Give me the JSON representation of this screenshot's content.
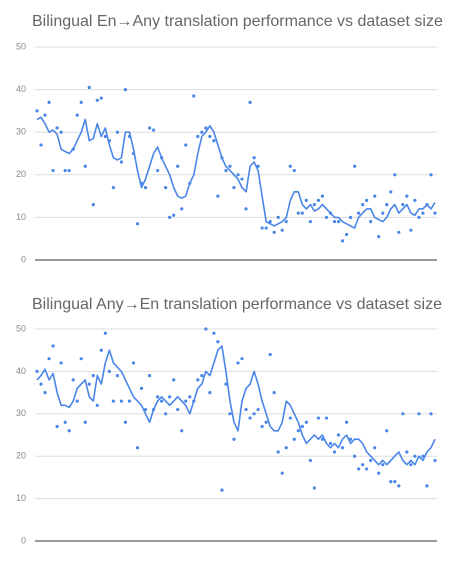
{
  "chart_data": [
    {
      "type": "line",
      "title": "Bilingual En→Any translation performance vs dataset size",
      "ylim": [
        0,
        50
      ],
      "yticks": [
        0,
        10,
        20,
        30,
        40,
        50
      ],
      "grid": true,
      "series": [
        {
          "type": "scatter",
          "color": "#4a86e8",
          "values": [
            35,
            27,
            34,
            37,
            21,
            31,
            30,
            21,
            21,
            26,
            34,
            37,
            22,
            40.5,
            13,
            37.5,
            38,
            29,
            28,
            17,
            30,
            23,
            40,
            29,
            25,
            8.5,
            18,
            17,
            31,
            30.5,
            21,
            24,
            17,
            10,
            10.5,
            22,
            12,
            27,
            18,
            38.5,
            29,
            30,
            31,
            29,
            28,
            15,
            24,
            21,
            22,
            17,
            20,
            19,
            12,
            37,
            24,
            22,
            7.5,
            7.5,
            9,
            6.5,
            10,
            7,
            9,
            22,
            21,
            11,
            11,
            14,
            9,
            13,
            14,
            15,
            10,
            11,
            9,
            9,
            4.5,
            6,
            10,
            22,
            11,
            13,
            14,
            9,
            15,
            5.5,
            11,
            13,
            16,
            20,
            6.5,
            13,
            15,
            7,
            14,
            10,
            11,
            13,
            20,
            11
          ]
        },
        {
          "type": "line",
          "color": "#4a86e8",
          "values": [
            33,
            33.5,
            32,
            30,
            30.5,
            29.5,
            26,
            25.5,
            25,
            26,
            28,
            30,
            33,
            28,
            28.5,
            32,
            29,
            31,
            27,
            24,
            23.5,
            24,
            30,
            30,
            26,
            21,
            17,
            19,
            22,
            25,
            26.5,
            24,
            22,
            20,
            17,
            15,
            14.5,
            15,
            18,
            20,
            25,
            29,
            30,
            31.5,
            30,
            27,
            24,
            22,
            21,
            20,
            19,
            17,
            16,
            22,
            23,
            21,
            15,
            9,
            8.5,
            8,
            8.5,
            9,
            10,
            14,
            16,
            16,
            13,
            12,
            13,
            11.5,
            12,
            13,
            12,
            11,
            10,
            10,
            9,
            8.5,
            8,
            7.5,
            10,
            11,
            12,
            12,
            10,
            9.5,
            9,
            10,
            12,
            13,
            11,
            12,
            13,
            11,
            10.5,
            12,
            12,
            13,
            12,
            13.5
          ]
        }
      ]
    },
    {
      "type": "line",
      "title": "Bilingual Any→En translation performance vs dataset size",
      "ylim": [
        0,
        50
      ],
      "yticks": [
        0,
        10,
        20,
        30,
        40,
        50
      ],
      "grid": true,
      "series": [
        {
          "type": "scatter",
          "color": "#4a86e8",
          "values": [
            40,
            37,
            35,
            43,
            46,
            27,
            42,
            28,
            26,
            38,
            33,
            43,
            28,
            37,
            39,
            32,
            45,
            49,
            40,
            33,
            39,
            33,
            28,
            33,
            42,
            22,
            36,
            31,
            39,
            31,
            34,
            33,
            30,
            34,
            38,
            31,
            26,
            33,
            34,
            33,
            38,
            39,
            50,
            35,
            49,
            47,
            12,
            37,
            30,
            24,
            42,
            43,
            31,
            29,
            30,
            31,
            27,
            28,
            44,
            35,
            21,
            16,
            22,
            29,
            24,
            26,
            27,
            28,
            19,
            12.5,
            29,
            24,
            29,
            23,
            21,
            25,
            22,
            28,
            24,
            20,
            17,
            18,
            17,
            19,
            22,
            16,
            18,
            26,
            14,
            14,
            13,
            30,
            21,
            18,
            20,
            30,
            20,
            13,
            30,
            19
          ]
        },
        {
          "type": "line",
          "color": "#4a86e8",
          "values": [
            38,
            39,
            40.5,
            38,
            39.5,
            35,
            32,
            32,
            31.5,
            33,
            36,
            37,
            38,
            34,
            33,
            39,
            37,
            42,
            45,
            42,
            41,
            40,
            38,
            36,
            34,
            33,
            32,
            30,
            28,
            31,
            33,
            34,
            33,
            32,
            33,
            34,
            33,
            32,
            30,
            33,
            36,
            37,
            40,
            39,
            42,
            45,
            46,
            40,
            33,
            28,
            26,
            33,
            36,
            37,
            40,
            37,
            33,
            30,
            27,
            26,
            26,
            28,
            33,
            32,
            30,
            28,
            25,
            23,
            24,
            25,
            24,
            25,
            23,
            22,
            23,
            22,
            24,
            25,
            23,
            24,
            24,
            23,
            21,
            20,
            19,
            18,
            19,
            18,
            19,
            20,
            21,
            19,
            18,
            19,
            18,
            20,
            19,
            21,
            22,
            24
          ]
        }
      ]
    }
  ]
}
